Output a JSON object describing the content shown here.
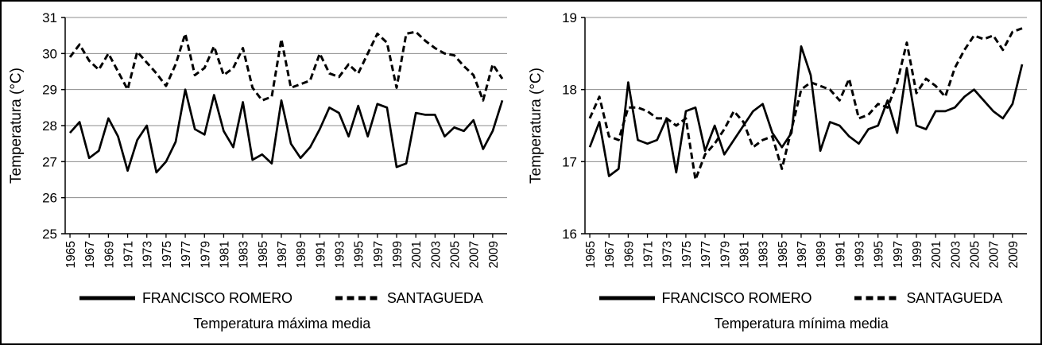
{
  "figure": {
    "background": "#ffffff",
    "border_color": "#000000",
    "line_color": "#000000",
    "grid_color": "#8c8c8c"
  },
  "chart_data": [
    {
      "type": "line",
      "title": "Temperatura máxima media",
      "ylabel": "Temperatura (°C)",
      "ylim": [
        25,
        31
      ],
      "yticks": [
        25,
        26,
        27,
        28,
        29,
        30,
        31
      ],
      "grid": true,
      "legend_position": "bottom",
      "x": [
        1965,
        1966,
        1967,
        1968,
        1969,
        1970,
        1971,
        1972,
        1973,
        1974,
        1975,
        1976,
        1977,
        1978,
        1979,
        1980,
        1981,
        1982,
        1983,
        1984,
        1985,
        1986,
        1987,
        1988,
        1989,
        1990,
        1991,
        1992,
        1993,
        1994,
        1995,
        1996,
        1997,
        1998,
        1999,
        2000,
        2001,
        2002,
        2003,
        2004,
        2005,
        2006,
        2007,
        2008,
        2009,
        2010
      ],
      "series": [
        {
          "name": "FRANCISCO ROMERO",
          "style": "solid",
          "color": "#000000",
          "values": [
            27.8,
            28.1,
            27.1,
            27.3,
            28.2,
            27.7,
            26.75,
            27.6,
            28.0,
            26.7,
            27.0,
            27.55,
            29.0,
            27.9,
            27.75,
            28.85,
            27.85,
            27.4,
            28.65,
            27.05,
            27.2,
            26.95,
            28.7,
            27.5,
            27.1,
            27.4,
            27.9,
            28.5,
            28.35,
            27.7,
            28.55,
            27.7,
            28.6,
            28.5,
            26.85,
            26.95,
            28.35,
            28.3,
            28.3,
            27.7,
            27.95,
            27.85,
            28.15,
            27.35,
            27.85,
            28.7
          ]
        },
        {
          "name": "SANTAGUEDA",
          "style": "dashed",
          "color": "#000000",
          "values": [
            29.9,
            30.25,
            29.8,
            29.55,
            30.0,
            29.5,
            29.0,
            30.05,
            29.75,
            29.45,
            29.1,
            29.7,
            30.55,
            29.4,
            29.6,
            30.2,
            29.4,
            29.6,
            30.15,
            29.05,
            28.7,
            28.8,
            30.4,
            29.05,
            29.15,
            29.25,
            30.0,
            29.45,
            29.35,
            29.7,
            29.45,
            30.0,
            30.55,
            30.3,
            29.05,
            30.55,
            30.6,
            30.35,
            30.15,
            30.0,
            29.95,
            29.65,
            29.4,
            28.7,
            29.7,
            29.3
          ]
        }
      ]
    },
    {
      "type": "line",
      "title": "Temperatura mínima media",
      "ylabel": "Temperatura (°C)",
      "ylim": [
        16,
        19
      ],
      "yticks": [
        16,
        17,
        18,
        19
      ],
      "grid": true,
      "legend_position": "bottom",
      "x": [
        1965,
        1966,
        1967,
        1968,
        1969,
        1970,
        1971,
        1972,
        1973,
        1974,
        1975,
        1976,
        1977,
        1978,
        1979,
        1980,
        1981,
        1982,
        1983,
        1984,
        1985,
        1986,
        1987,
        1988,
        1989,
        1990,
        1991,
        1992,
        1993,
        1994,
        1995,
        1996,
        1997,
        1998,
        1999,
        2000,
        2001,
        2002,
        2003,
        2004,
        2005,
        2006,
        2007,
        2008,
        2009,
        2010
      ],
      "series": [
        {
          "name": "FRANCISCO ROMERO",
          "style": "solid",
          "color": "#000000",
          "values": [
            17.2,
            17.55,
            16.8,
            16.9,
            18.1,
            17.3,
            17.25,
            17.3,
            17.6,
            16.85,
            17.7,
            17.75,
            17.15,
            17.5,
            17.1,
            17.3,
            17.5,
            17.7,
            17.8,
            17.4,
            17.2,
            17.4,
            18.6,
            18.2,
            17.15,
            17.55,
            17.5,
            17.35,
            17.25,
            17.45,
            17.5,
            17.85,
            17.4,
            18.3,
            17.5,
            17.45,
            17.7,
            17.7,
            17.75,
            17.9,
            18.0,
            17.85,
            17.7,
            17.6,
            17.8,
            18.35
          ]
        },
        {
          "name": "SANTAGUEDA",
          "style": "dashed",
          "color": "#000000",
          "values": [
            17.6,
            17.9,
            17.35,
            17.3,
            17.75,
            17.75,
            17.7,
            17.6,
            17.6,
            17.5,
            17.6,
            16.75,
            17.1,
            17.25,
            17.45,
            17.7,
            17.55,
            17.2,
            17.3,
            17.35,
            16.9,
            17.45,
            18.0,
            18.1,
            18.05,
            18.0,
            17.85,
            18.15,
            17.6,
            17.65,
            17.8,
            17.75,
            18.1,
            18.65,
            17.95,
            18.15,
            18.05,
            17.9,
            18.3,
            18.55,
            18.75,
            18.7,
            18.75,
            18.55,
            18.8,
            18.85
          ]
        }
      ]
    }
  ]
}
